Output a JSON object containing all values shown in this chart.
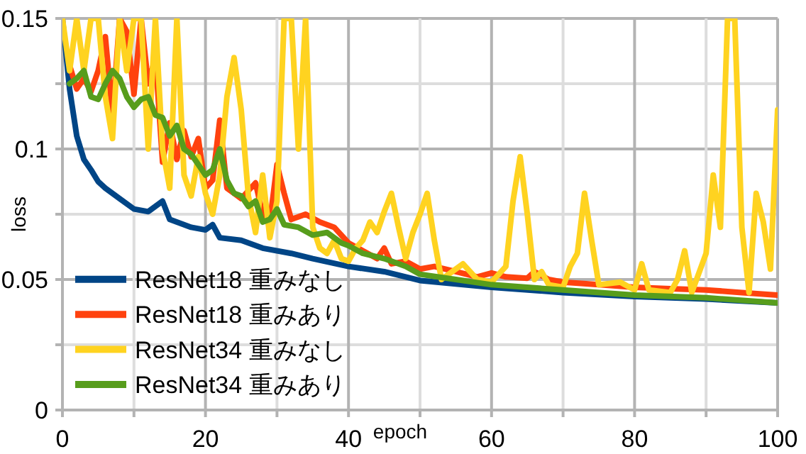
{
  "chart_data": {
    "type": "line",
    "xlabel": "epoch",
    "ylabel": "loss",
    "xlim": [
      0,
      100
    ],
    "ylim": [
      0,
      0.15
    ],
    "xticks": [
      0,
      {
        "value": 10,
        "label": null
      },
      20,
      {
        "value": 30,
        "label": null
      },
      40,
      {
        "value": 50,
        "label": null
      },
      60,
      {
        "value": 70,
        "label": null
      },
      80,
      {
        "value": 90,
        "label": null
      },
      100
    ],
    "yticks": [
      0,
      {
        "value": 0.025,
        "label": null
      },
      0.05,
      {
        "value": 0.075,
        "label": null
      },
      0.1,
      {
        "value": 0.125,
        "label": null
      },
      0.15
    ],
    "grid": true,
    "legend": "bottom left",
    "marker": "none",
    "line_style": "solid",
    "series": [
      {
        "name": "ResNet18 重みなし",
        "color": "#004586",
        "x": [
          0,
          1,
          2,
          3,
          4,
          5,
          6,
          8,
          10,
          12,
          14,
          15,
          18,
          20,
          21,
          22,
          25,
          28,
          32,
          35,
          40,
          45,
          50,
          60,
          70,
          80,
          90,
          100
        ],
        "values": [
          0.15,
          0.123,
          0.105,
          0.096,
          0.092,
          0.0875,
          0.085,
          0.081,
          0.077,
          0.076,
          0.08,
          0.073,
          0.07,
          0.069,
          0.071,
          0.066,
          0.065,
          0.062,
          0.06,
          0.058,
          0.055,
          0.053,
          0.0496,
          0.047,
          0.045,
          0.0435,
          0.0425,
          0.041
        ]
      },
      {
        "name": "ResNet18 重みあり",
        "color": "#ff420e",
        "x": [
          1,
          2,
          3,
          4,
          5,
          6,
          7,
          8,
          9,
          10,
          11,
          12,
          13,
          14,
          15,
          16,
          17,
          18,
          19,
          20,
          21,
          22,
          23,
          24,
          25,
          27,
          28,
          29,
          30,
          31,
          32,
          34,
          36,
          38,
          40,
          42,
          44,
          45,
          46,
          48,
          50,
          52,
          55,
          58,
          60,
          62,
          65,
          66,
          68,
          70,
          75,
          80,
          85,
          90,
          95,
          100
        ],
        "values": [
          0.132,
          0.123,
          0.127,
          0.122,
          0.13,
          0.143,
          0.113,
          0.15,
          0.145,
          0.121,
          0.15,
          0.125,
          0.135,
          0.095,
          0.11,
          0.096,
          0.107,
          0.097,
          0.104,
          0.085,
          0.088,
          0.111,
          0.085,
          0.083,
          0.081,
          0.087,
          0.075,
          0.072,
          0.094,
          0.083,
          0.073,
          0.075,
          0.072,
          0.07,
          0.064,
          0.061,
          0.058,
          0.062,
          0.056,
          0.057,
          0.054,
          0.055,
          0.053,
          0.051,
          0.0525,
          0.051,
          0.0505,
          0.053,
          0.05,
          0.049,
          0.048,
          0.047,
          0.0465,
          0.046,
          0.045,
          0.044
        ]
      },
      {
        "name": "ResNet34 重みなし",
        "color": "#ffd320",
        "x": [
          0,
          1,
          2,
          3,
          4,
          5,
          6,
          7,
          8,
          9,
          10,
          11,
          12,
          13,
          14,
          15,
          16,
          17,
          18,
          19,
          20,
          21,
          22,
          23,
          24,
          25,
          26,
          27,
          28,
          29,
          30,
          31,
          32,
          33,
          34,
          35,
          36,
          37,
          38,
          39,
          40,
          41,
          42,
          43,
          44,
          45,
          46,
          47,
          48,
          49,
          50,
          51,
          52,
          53,
          55,
          56,
          58,
          60,
          62,
          63,
          64,
          65,
          66,
          67,
          68,
          70,
          71,
          72,
          73,
          74,
          75,
          78,
          80,
          81,
          82,
          85,
          86,
          87,
          88,
          90,
          91,
          92,
          93,
          94,
          95,
          96,
          97,
          98,
          99,
          100
        ],
        "values": [
          0.15,
          0.13,
          0.15,
          0.13,
          0.15,
          0.15,
          0.12,
          0.104,
          0.15,
          0.13,
          0.15,
          0.15,
          0.1,
          0.15,
          0.1,
          0.085,
          0.15,
          0.09,
          0.082,
          0.097,
          0.083,
          0.075,
          0.09,
          0.12,
          0.135,
          0.115,
          0.082,
          0.068,
          0.09,
          0.066,
          0.08,
          0.15,
          0.15,
          0.1,
          0.15,
          0.07,
          0.062,
          0.06,
          0.065,
          0.058,
          0.057,
          0.062,
          0.065,
          0.072,
          0.068,
          0.076,
          0.083,
          0.07,
          0.058,
          0.068,
          0.075,
          0.083,
          0.065,
          0.05,
          0.054,
          0.056,
          0.05,
          0.049,
          0.055,
          0.08,
          0.097,
          0.075,
          0.05,
          0.053,
          0.048,
          0.047,
          0.055,
          0.06,
          0.083,
          0.065,
          0.048,
          0.049,
          0.046,
          0.056,
          0.046,
          0.045,
          0.05,
          0.061,
          0.045,
          0.06,
          0.09,
          0.07,
          0.15,
          0.15,
          0.07,
          0.045,
          0.083,
          0.072,
          0.054,
          0.115
        ]
      },
      {
        "name": "ResNet34 重みあり",
        "color": "#579d1c",
        "x": [
          1,
          2,
          3,
          4,
          5,
          6,
          7,
          8,
          9,
          10,
          11,
          12,
          13,
          14,
          15,
          16,
          17,
          18,
          19,
          20,
          21,
          22,
          23,
          24,
          25,
          26,
          27,
          28,
          29,
          30,
          31,
          33,
          35,
          37,
          39,
          40,
          42,
          45,
          48,
          50,
          55,
          60,
          65,
          70,
          80,
          90,
          100
        ],
        "values": [
          0.125,
          0.127,
          0.13,
          0.12,
          0.119,
          0.125,
          0.13,
          0.127,
          0.12,
          0.116,
          0.119,
          0.12,
          0.113,
          0.112,
          0.105,
          0.109,
          0.1,
          0.098,
          0.094,
          0.09,
          0.092,
          0.1,
          0.088,
          0.083,
          0.082,
          0.078,
          0.08,
          0.072,
          0.073,
          0.077,
          0.071,
          0.07,
          0.067,
          0.068,
          0.064,
          0.063,
          0.06,
          0.058,
          0.055,
          0.052,
          0.05,
          0.048,
          0.047,
          0.046,
          0.044,
          0.043,
          0.041
        ]
      }
    ]
  }
}
